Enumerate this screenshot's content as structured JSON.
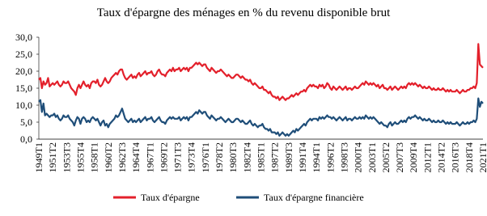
{
  "chart_data": {
    "type": "line",
    "title": "Taux d'épargne des ménages en % du revenu disponible  brut",
    "categories": [
      "1949T1",
      null,
      null,
      null,
      null,
      null,
      null,
      null,
      null,
      "1951T2",
      null,
      null,
      null,
      null,
      null,
      null,
      null,
      null,
      "1953T3",
      null,
      null,
      null,
      null,
      null,
      null,
      null,
      null,
      "1955T4",
      null,
      null,
      null,
      null,
      null,
      null,
      null,
      null,
      "1958T1",
      null,
      null,
      null,
      null,
      null,
      null,
      null,
      null,
      "1960T2",
      null,
      null,
      null,
      null,
      null,
      null,
      null,
      null,
      "1962T3",
      null,
      null,
      null,
      null,
      null,
      null,
      null,
      null,
      "1964T4",
      null,
      null,
      null,
      null,
      null,
      null,
      null,
      null,
      "1967T1",
      null,
      null,
      null,
      null,
      null,
      null,
      null,
      null,
      "1969T2",
      null,
      null,
      null,
      null,
      null,
      null,
      null,
      null,
      "1971T3",
      null,
      null,
      null,
      null,
      null,
      null,
      null,
      null,
      "1973T4",
      null,
      null,
      null,
      null,
      null,
      null,
      null,
      null,
      "1976T1",
      null,
      null,
      null,
      null,
      null,
      null,
      null,
      null,
      "1978T2",
      null,
      null,
      null,
      null,
      null,
      null,
      null,
      null,
      "1980T3",
      null,
      null,
      null,
      null,
      null,
      null,
      null,
      null,
      "1982T4",
      null,
      null,
      null,
      null,
      null,
      null,
      null,
      null,
      "1985T1",
      null,
      null,
      null,
      null,
      null,
      null,
      null,
      null,
      "1987T2",
      null,
      null,
      null,
      null,
      null,
      null,
      null,
      null,
      "1989T3",
      null,
      null,
      null,
      null,
      null,
      null,
      null,
      null,
      "1991T4",
      null,
      null,
      null,
      null,
      null,
      null,
      null,
      null,
      "1994T1",
      null,
      null,
      null,
      null,
      null,
      null,
      null,
      null,
      "1996T2",
      null,
      null,
      null,
      null,
      null,
      null,
      null,
      null,
      "1998T3",
      null,
      null,
      null,
      null,
      null,
      null,
      null,
      null,
      "2000T4",
      null,
      null,
      null,
      null,
      null,
      null,
      null,
      null,
      "2003T1",
      null,
      null,
      null,
      null,
      null,
      null,
      null,
      null,
      "2005T2",
      null,
      null,
      null,
      null,
      null,
      null,
      null,
      null,
      "2007T3",
      null,
      null,
      null,
      null,
      null,
      null,
      null,
      null,
      "2009T4",
      null,
      null,
      null,
      null,
      null,
      null,
      null,
      null,
      "2012T1",
      null,
      null,
      null,
      null,
      null,
      null,
      null,
      null,
      "2014T2",
      null,
      null,
      null,
      null,
      null,
      null,
      null,
      null,
      "2016T3",
      null,
      null,
      null,
      null,
      null,
      null,
      null,
      null,
      "2018T4",
      null,
      null,
      null,
      null,
      null,
      null,
      null,
      null,
      "2021T1"
    ],
    "series": [
      {
        "name": "Taux d'épargne",
        "color": "#e3202b",
        "values": [
          17.5,
          18,
          15,
          17,
          16,
          16.5,
          18,
          15.5,
          16,
          16.5,
          16,
          16.5,
          17,
          16,
          15.5,
          16,
          17,
          16.5,
          16.5,
          17,
          16,
          15,
          14.5,
          14,
          13,
          15,
          16,
          15,
          16,
          17,
          16,
          15.5,
          16,
          15,
          16.5,
          17,
          17,
          16.5,
          17.5,
          16,
          15.5,
          16,
          17,
          18,
          17,
          16.5,
          17,
          18,
          18.5,
          19,
          19.5,
          19,
          20,
          20.5,
          20.5,
          19,
          18,
          17.5,
          18,
          18.5,
          19,
          18,
          18.5,
          18,
          19,
          19.5,
          18.5,
          19,
          19.5,
          20,
          19,
          19.5,
          19.5,
          20,
          19,
          18.5,
          19,
          20,
          20.5,
          19.5,
          19,
          19,
          18.5,
          19.5,
          20,
          20.5,
          20,
          21,
          20,
          20.5,
          20.5,
          21,
          20,
          20.5,
          21,
          20.5,
          21,
          20,
          21,
          21,
          21.5,
          22,
          22.5,
          22,
          22.5,
          22,
          21.5,
          22,
          22,
          21,
          20.5,
          20,
          21,
          20.5,
          20,
          19.5,
          20,
          20,
          20.5,
          20,
          19.5,
          19,
          18.5,
          19,
          18.5,
          18,
          18,
          18.5,
          19,
          19,
          18.5,
          18,
          18.5,
          18,
          17.5,
          17.5,
          17,
          17.5,
          16.5,
          16,
          16.5,
          16,
          15.5,
          15,
          15,
          15.5,
          14.5,
          14.5,
          14,
          13.5,
          14,
          13,
          12.5,
          12.5,
          12,
          12.5,
          11.5,
          12,
          12.5,
          12,
          11.5,
          12,
          12,
          12.5,
          13,
          12.5,
          13,
          13.5,
          13,
          13.5,
          14,
          14,
          14.5,
          14,
          15,
          15.5,
          16,
          15.5,
          16,
          15.5,
          15.5,
          15,
          16,
          15.5,
          16,
          15,
          15.5,
          16.5,
          16,
          15,
          14.5,
          15.5,
          15,
          14.5,
          15,
          15.5,
          15,
          14.5,
          15,
          15.5,
          14.5,
          15,
          15,
          14.5,
          15,
          15.5,
          15,
          15,
          15.5,
          16,
          16.5,
          16,
          17,
          16.5,
          16,
          16.5,
          16,
          16.5,
          16,
          15.5,
          16,
          15,
          15.5,
          16,
          15,
          15,
          14.5,
          15,
          15.5,
          14.5,
          15,
          15.5,
          15,
          14.5,
          15,
          15.5,
          15,
          15.5,
          15,
          16,
          16.5,
          16,
          16.5,
          16,
          16.5,
          16,
          15.5,
          16,
          15.5,
          15,
          15.5,
          15,
          15,
          15.5,
          15,
          14.5,
          15,
          14.5,
          14.5,
          15,
          14.5,
          14.5,
          15,
          14.5,
          14,
          14.5,
          14,
          14.5,
          14,
          14,
          14,
          14.5,
          14,
          13.5,
          14,
          14.5,
          14,
          14,
          14.5,
          14.5,
          15,
          15,
          15.5,
          15,
          16.5,
          28,
          22,
          21.5,
          21
        ]
      },
      {
        "name": "Taux d'épargne financière",
        "color": "#1f4e79",
        "values": [
          11,
          11.5,
          8,
          10.5,
          7,
          7.5,
          7,
          6.5,
          7,
          7,
          7.5,
          6.5,
          7,
          6,
          5.5,
          6,
          7,
          6.5,
          6.5,
          7,
          6,
          5.5,
          5,
          4,
          5.5,
          6.5,
          6,
          4.5,
          6,
          6.5,
          6,
          5,
          5.5,
          5,
          6,
          6.5,
          6,
          5.5,
          6,
          5,
          4,
          5,
          5.5,
          4,
          4.5,
          3.5,
          4.5,
          5,
          5.5,
          6,
          7,
          6.5,
          7,
          8,
          9,
          7.5,
          6,
          5.5,
          5,
          5.5,
          6,
          5,
          5.5,
          5,
          5.5,
          6,
          5,
          5.5,
          6,
          6.5,
          5.5,
          6,
          6,
          6.5,
          5.5,
          5,
          5.5,
          6,
          6.5,
          5.5,
          5,
          5,
          4.5,
          5.5,
          6,
          6.5,
          6,
          6.5,
          6,
          6,
          6,
          6.5,
          5.5,
          6,
          6.5,
          6,
          6.5,
          5.5,
          6.5,
          6.5,
          7,
          7.5,
          8,
          7.5,
          8.5,
          8,
          7.5,
          8,
          8,
          7,
          6.5,
          6,
          7,
          6.5,
          6,
          5.5,
          6,
          6,
          6.5,
          6,
          5.5,
          5,
          5.5,
          6,
          5.5,
          5,
          5,
          5.5,
          6,
          6,
          5.5,
          5,
          5.5,
          5,
          4.5,
          4.5,
          5,
          5.5,
          4.5,
          4,
          4.5,
          4,
          3.5,
          4,
          4,
          4.5,
          3.5,
          3,
          3,
          2.5,
          3,
          2,
          2,
          2,
          1.5,
          2,
          1,
          1.5,
          2,
          1.5,
          1,
          1.5,
          1,
          1.5,
          2,
          2.5,
          2,
          3,
          2.5,
          3,
          3.5,
          4,
          4.5,
          4,
          5,
          5.5,
          6,
          5.5,
          6,
          6,
          6,
          5.5,
          6.5,
          6,
          6.5,
          6,
          6.5,
          7,
          6.5,
          6.5,
          6,
          6.5,
          6,
          5.5,
          6,
          6.5,
          6,
          5.5,
          6,
          6.5,
          5.5,
          6,
          6,
          5.5,
          6,
          6.5,
          6,
          6,
          6.5,
          6,
          6.5,
          6,
          7,
          6.5,
          6,
          6.5,
          6,
          6.5,
          6,
          5.5,
          5,
          4.5,
          5,
          4.5,
          4,
          4,
          3.5,
          4.5,
          5,
          4,
          4.5,
          5,
          4.5,
          4.5,
          5,
          5.5,
          5,
          5.5,
          5,
          6,
          6.5,
          6,
          6.5,
          6.5,
          7,
          6.5,
          6,
          6.5,
          6,
          5.5,
          6,
          5.5,
          5.5,
          6,
          5.5,
          5,
          5.5,
          5,
          5,
          5.5,
          5,
          5,
          5.5,
          5,
          4.5,
          5,
          4.5,
          5,
          4.5,
          4.5,
          4.5,
          5,
          4.5,
          4,
          4.5,
          5,
          4.5,
          4.5,
          5,
          4.5,
          5,
          5,
          5.5,
          5,
          6,
          12,
          9.5,
          11,
          10.5
        ]
      }
    ],
    "ylim": [
      0,
      30
    ],
    "yticks": [
      {
        "value": 0,
        "label": "0,0"
      },
      {
        "value": 5,
        "label": "5,0"
      },
      {
        "value": 10,
        "label": "10,0"
      },
      {
        "value": 15,
        "label": "15,0"
      },
      {
        "value": 20,
        "label": "20,0"
      },
      {
        "value": 25,
        "label": "25,0"
      },
      {
        "value": 30,
        "label": "30,0"
      }
    ],
    "legend": "bottom"
  }
}
